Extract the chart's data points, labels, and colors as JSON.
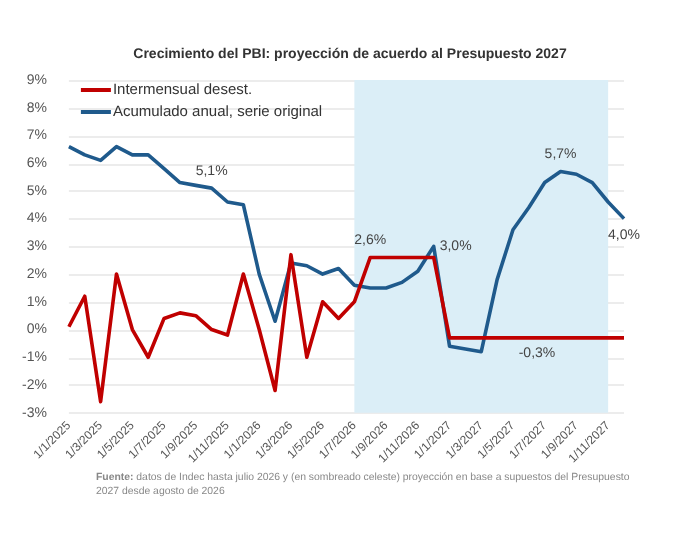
{
  "chart_data": {
    "type": "line",
    "title": "Crecimiento del PBI: proyección de acuerdo al Presupuesto 2027",
    "categories": [
      "1/1/2025",
      null,
      "1/3/2025",
      null,
      "1/5/2025",
      null,
      "1/7/2025",
      null,
      "1/9/2025",
      null,
      "1/11/2025",
      null,
      "1/1/2026",
      null,
      "1/3/2026",
      null,
      "1/5/2026",
      null,
      "1/7/2026",
      null,
      "1/9/2026",
      null,
      "1/11/2026",
      null,
      "1/1/2027",
      null,
      "1/3/2027",
      null,
      "1/5/2027",
      null,
      "1/7/2027",
      null,
      "1/9/2027",
      null,
      "1/11/2027",
      null
    ],
    "series": [
      {
        "name": "Intermensual desest.",
        "color": "#c00000",
        "values": [
          0.1,
          1.2,
          -2.6,
          2.0,
          0.0,
          -1.0,
          0.4,
          0.6,
          0.5,
          0.0,
          -0.2,
          2.0,
          0.0,
          -2.2,
          2.7,
          -1.0,
          1.0,
          0.4,
          1.0,
          2.6,
          2.6,
          2.6,
          2.6,
          2.6,
          -0.3,
          -0.3,
          -0.3,
          -0.3,
          -0.3,
          -0.3,
          -0.3,
          -0.3,
          -0.3,
          -0.3,
          -0.3,
          -0.3
        ],
        "value_labels": [
          null,
          null,
          null,
          null,
          null,
          null,
          null,
          null,
          null,
          null,
          null,
          null,
          null,
          null,
          null,
          null,
          null,
          null,
          null,
          "2,6%",
          null,
          null,
          null,
          null,
          null,
          null,
          null,
          null,
          "-0,3%",
          null,
          null,
          null,
          null,
          null,
          null,
          null
        ]
      },
      {
        "name": "Acumulado anual, serie original",
        "color": "#1f5a8c",
        "values": [
          6.6,
          6.3,
          6.1,
          6.6,
          6.3,
          6.3,
          5.8,
          5.3,
          5.2,
          5.1,
          4.6,
          4.5,
          2.0,
          0.3,
          2.4,
          2.3,
          2.0,
          2.2,
          1.6,
          1.5,
          1.5,
          1.7,
          2.1,
          3.0,
          -0.6,
          -0.7,
          -0.8,
          1.8,
          3.6,
          4.4,
          5.3,
          5.7,
          5.6,
          5.3,
          4.6,
          4.0
        ],
        "value_labels": [
          null,
          null,
          null,
          null,
          null,
          null,
          null,
          null,
          null,
          "5,1%",
          null,
          null,
          null,
          null,
          null,
          null,
          null,
          null,
          null,
          null,
          null,
          null,
          null,
          "3,0%",
          null,
          null,
          null,
          null,
          null,
          null,
          null,
          "5,7%",
          null,
          null,
          null,
          "4,0%"
        ]
      }
    ],
    "ylim": [
      -3,
      9
    ],
    "yticks": [
      {
        "value": -3,
        "label": "-3%"
      },
      {
        "value": -2,
        "label": "-2%"
      },
      {
        "value": -1,
        "label": "-1%"
      },
      {
        "value": 0,
        "label": "0%"
      },
      {
        "value": 1,
        "label": "1%"
      },
      {
        "value": 2,
        "label": "2%"
      },
      {
        "value": 3,
        "label": "3%"
      },
      {
        "value": 4,
        "label": "4%"
      },
      {
        "value": 5,
        "label": "5%"
      },
      {
        "value": 6,
        "label": "6%"
      },
      {
        "value": 7,
        "label": "7%"
      },
      {
        "value": 8,
        "label": "8%"
      },
      {
        "value": 9,
        "label": "9%"
      }
    ],
    "bands": [
      {
        "axis": "x",
        "from": "1/7/2026",
        "to": "1/11/2027",
        "color": "#dbeef7"
      }
    ],
    "grid": "y",
    "legend": "top left",
    "line_style": "solid",
    "annotations": [
      "Fuente: datos de Indec hasta julio 2026 y (en sombreado celeste) proyección en base a supuestos del Presupuesto 2027 desde agosto de 2026"
    ]
  }
}
